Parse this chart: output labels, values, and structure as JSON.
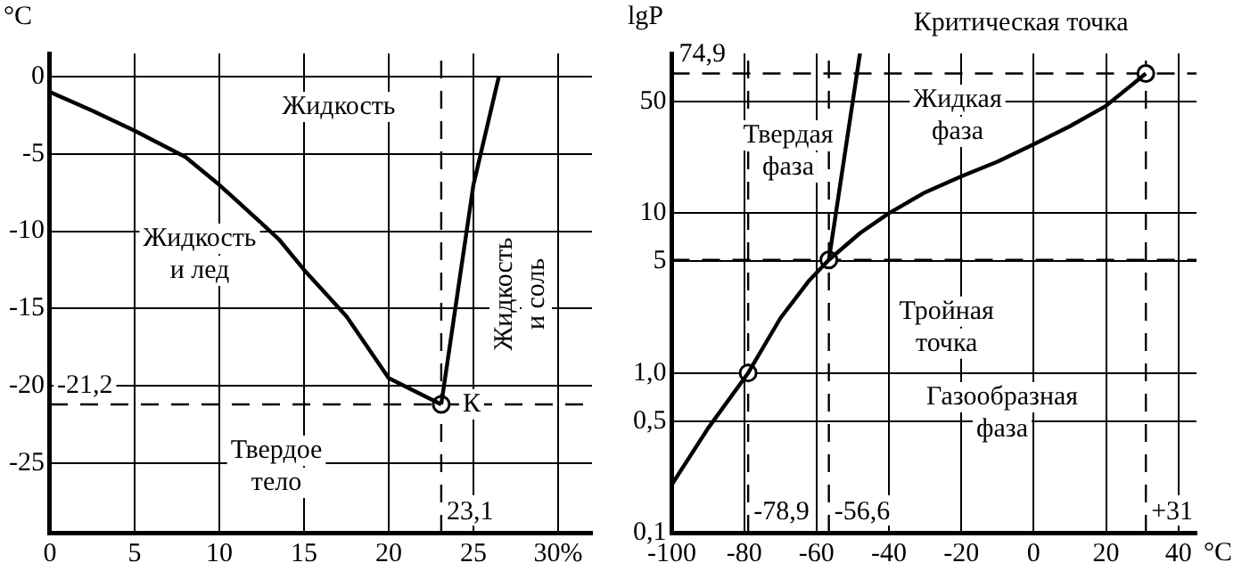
{
  "chart_data": [
    {
      "type": "line",
      "ylabel": "°C",
      "xlim": [
        0,
        32
      ],
      "xticks": [
        0,
        5,
        10,
        15,
        20,
        25,
        {
          "value": 30,
          "label": "30%"
        }
      ],
      "ylim": [
        -29.5,
        1.5
      ],
      "yticks": [
        0,
        -5,
        -10,
        -15,
        -20,
        -25
      ],
      "grid": true,
      "line_style": "solid",
      "series": [
        {
          "type": "line",
          "color": "#000000",
          "marker": "none",
          "x": [
            0,
            2.5,
            5,
            8,
            10,
            12,
            13.5,
            15,
            17.5,
            20,
            23.1
          ],
          "values": [
            -1,
            -2.2,
            -3.5,
            -5.2,
            -7,
            -9,
            -10.5,
            -12.5,
            -15.5,
            -19.5,
            -21.2
          ]
        },
        {
          "type": "line",
          "color": "#000000",
          "marker": "none",
          "x": [
            23.1,
            25,
            26.5
          ],
          "values": [
            -21.2,
            -7,
            0
          ]
        },
        {
          "type": "scatter",
          "color": "#000000",
          "marker": "circle",
          "x": [
            23.1
          ],
          "values": [
            -21.2
          ]
        }
      ],
      "ref_lines": [
        {
          "axis": "y",
          "value": -21.2,
          "label": "-21,2",
          "line_style": "dashed"
        },
        {
          "axis": "x",
          "value": 23.1,
          "label": "23,1",
          "line_style": "dashed"
        }
      ],
      "annotations": [
        "Жидкость",
        "Жидкость\nи лед",
        "Твердое\nтело",
        "Жидкость\nи соль",
        {
          "text": "К",
          "x": 23.1,
          "y": -21.2
        }
      ]
    },
    {
      "type": "line",
      "ylabel": "lgP",
      "xlabel": "°C",
      "xlim": [
        -100,
        45
      ],
      "xticks": [
        -100,
        -80,
        -60,
        -40,
        -20,
        0,
        20,
        40
      ],
      "ylim": [
        0.1,
        100
      ],
      "yticks": [
        {
          "value": 0.1,
          "label": "0,1"
        },
        {
          "value": 0.5,
          "label": "0,5"
        },
        {
          "value": 1,
          "label": "1,0"
        },
        5,
        10,
        50
      ],
      "log": "y",
      "grid": true,
      "line_style": "solid",
      "series": [
        {
          "type": "line",
          "color": "#000000",
          "marker": "none",
          "x": [
            -100,
            -90,
            -78.9,
            -70,
            -62,
            -56.6,
            -48,
            -40,
            -30,
            -20,
            -10,
            0,
            10,
            20,
            31
          ],
          "values": [
            0.2,
            0.45,
            1,
            2.2,
            3.8,
            5.1,
            7.5,
            10,
            13.5,
            17,
            21,
            27,
            35,
            47,
            74.9
          ]
        },
        {
          "type": "line",
          "color": "#000000",
          "marker": "none",
          "x": [
            -56.6,
            -48
          ],
          "values": [
            5.1,
            100
          ]
        },
        {
          "type": "scatter",
          "color": "#000000",
          "marker": "circle",
          "x": [
            -78.9,
            -56.6,
            31
          ],
          "values": [
            1,
            5.1,
            74.9
          ]
        }
      ],
      "ref_lines": [
        {
          "axis": "y",
          "value": 74.9,
          "label": "74,9",
          "line_style": "dashed"
        },
        {
          "axis": "y",
          "value": 5.1,
          "line_style": "dashed"
        },
        {
          "axis": "x",
          "value": -78.9,
          "label": "-78,9",
          "line_style": "dashed"
        },
        {
          "axis": "x",
          "value": -56.6,
          "label": "-56,6",
          "line_style": "dashed"
        },
        {
          "axis": "x",
          "value": 31,
          "label": "+31",
          "line_style": "dashed"
        }
      ],
      "annotations": [
        {
          "text": "Критическая точка",
          "x": 31,
          "y": 74.9
        },
        "Твердая\nфаза",
        "Жидкая\nфаза",
        {
          "text": "Тройная\nточка",
          "x": -56.6,
          "y": 5.1
        },
        "Газообразная\nфаза"
      ]
    }
  ]
}
